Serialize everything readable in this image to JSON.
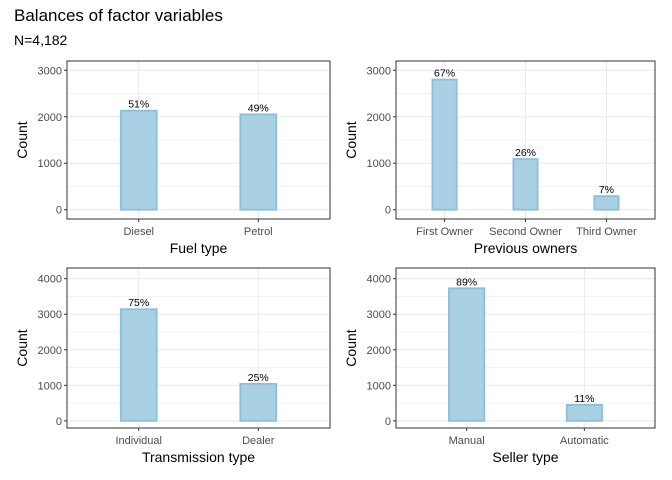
{
  "title": "Balances of factor variables",
  "subtitle": "N=4,182",
  "colors": {
    "bar_fill": "#a9d0e3",
    "bar_stroke": "#8cc0d9",
    "grid": "#ebebeb",
    "panel_border": "#333333"
  },
  "chart_data": [
    {
      "type": "bar",
      "categories": [
        "Diesel",
        "Petrol"
      ],
      "values": [
        2130,
        2052
      ],
      "bar_labels": [
        "51%",
        "49%"
      ],
      "xlabel": "Fuel type",
      "ylabel": "Count",
      "ylim": [
        -200,
        3200
      ],
      "yticks": [
        0,
        1000,
        2000,
        3000
      ],
      "grid": true
    },
    {
      "type": "bar",
      "categories": [
        "First Owner",
        "Second Owner",
        "Third Owner"
      ],
      "values": [
        2800,
        1090,
        292
      ],
      "bar_labels": [
        "67%",
        "26%",
        "7%"
      ],
      "xlabel": "Previous owners",
      "ylabel": "Count",
      "ylim": [
        -200,
        3200
      ],
      "yticks": [
        0,
        1000,
        2000,
        3000
      ],
      "grid": true
    },
    {
      "type": "bar",
      "categories": [
        "Individual",
        "Dealer"
      ],
      "values": [
        3140,
        1042
      ],
      "bar_labels": [
        "75%",
        "25%"
      ],
      "xlabel": "Transmission type",
      "ylabel": "Count",
      "ylim": [
        -200,
        4300
      ],
      "yticks": [
        0,
        1000,
        2000,
        3000,
        4000
      ],
      "grid": true
    },
    {
      "type": "bar",
      "categories": [
        "Manual",
        "Automatic"
      ],
      "values": [
        3730,
        452
      ],
      "bar_labels": [
        "89%",
        "11%"
      ],
      "xlabel": "Seller type",
      "ylabel": "Count",
      "ylim": [
        -200,
        4300
      ],
      "yticks": [
        0,
        1000,
        2000,
        3000,
        4000
      ],
      "grid": true
    }
  ]
}
